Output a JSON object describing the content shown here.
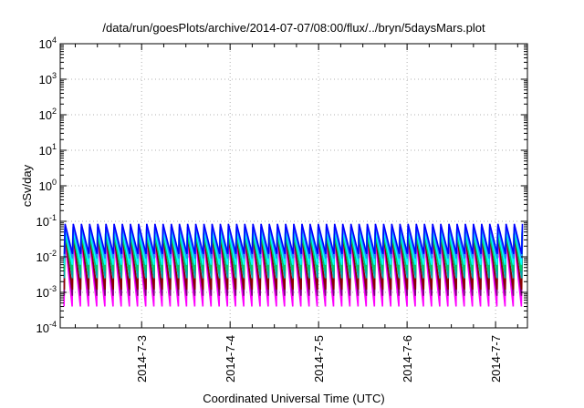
{
  "chart_data": {
    "type": "line",
    "title": "/data/run/goesPlots/archive/2014-07-07/08:00/flux/../bryn/5daysMars.plot",
    "xlabel": "Coordinated Universal Time (UTC)",
    "ylabel": "cSv/day",
    "yscale": "log",
    "ylim": [
      0.0001,
      10000
    ],
    "y_tick_exponents": [
      -4,
      -3,
      -2,
      -1,
      0,
      1,
      2,
      3,
      4
    ],
    "y_tick_base": "10",
    "xlim_days": [
      2.08,
      7.36
    ],
    "x_ticks": [
      {
        "day": 3,
        "label": "2014-7-3"
      },
      {
        "day": 4,
        "label": "2014-7-4"
      },
      {
        "day": 5,
        "label": "2014-7-5"
      },
      {
        "day": 6,
        "label": "2014-7-6"
      },
      {
        "day": 7,
        "label": "2014-7-7"
      }
    ],
    "grid": true,
    "sawtooth_period_days": 0.0923,
    "series": [
      {
        "color": "#ff00ff",
        "peak": 0.035,
        "trough": 0.0004
      },
      {
        "color": "#800080",
        "peak": 0.05,
        "trough": 0.0008
      },
      {
        "color": "#8b0000",
        "peak": 0.04,
        "trough": 0.0012
      },
      {
        "color": "#00aaaa",
        "peak": 0.055,
        "trough": 0.0025
      },
      {
        "color": "#00cc66",
        "peak": 0.045,
        "trough": 0.004
      },
      {
        "color": "#00ffff",
        "peak": 0.06,
        "trough": 0.006
      },
      {
        "color": "#1e90ff",
        "peak": 0.07,
        "trough": 0.009
      },
      {
        "color": "#0000ff",
        "peak": 0.085,
        "trough": 0.012
      }
    ]
  }
}
